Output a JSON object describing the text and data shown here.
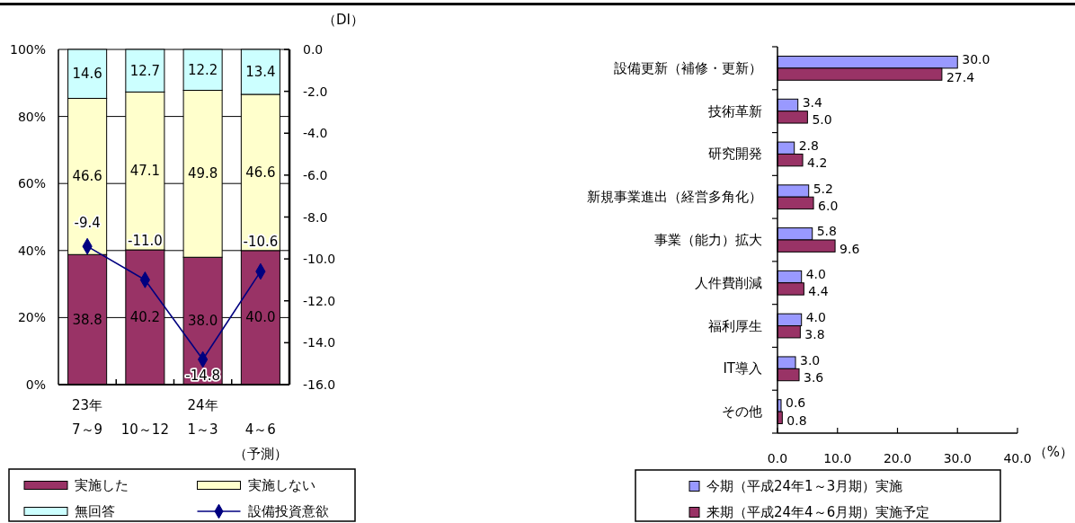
{
  "chart_data": [
    {
      "type": "bar",
      "stacked": true,
      "categories": [
        "23年\n7～9",
        "\n10～12",
        "24年\n1～3",
        "\n4～6\n（予測）"
      ],
      "series": [
        {
          "name": "実施した",
          "color": "#993366",
          "values": [
            38.8,
            40.2,
            38.0,
            40.0
          ],
          "value_labels": [
            "38.8",
            "40.2",
            "38.0",
            "40.0"
          ]
        },
        {
          "name": "実施しない",
          "color": "#ffffcc",
          "values": [
            46.6,
            47.1,
            49.8,
            46.6
          ],
          "value_labels": [
            "46.6",
            "47.1",
            "49.8",
            "46.6"
          ]
        },
        {
          "name": "無回答",
          "color": "#ccffff",
          "values": [
            14.6,
            12.7,
            12.2,
            13.4
          ],
          "value_labels": [
            "14.6",
            "12.7",
            "12.2",
            "13.4"
          ]
        },
        {
          "name": "設備投資意欲",
          "type": "line",
          "axis": "y2",
          "color": "#000080",
          "marker": "diamond",
          "values": [
            -9.4,
            -11.0,
            -14.8,
            -10.6
          ],
          "value_labels": [
            "-9.4",
            "-11.0",
            "-14.8",
            "-10.6"
          ]
        }
      ],
      "ylim": [
        0,
        100
      ],
      "yticks": [
        {
          "value": 0,
          "label": "0%"
        },
        {
          "value": 20,
          "label": "20%"
        },
        {
          "value": 40,
          "label": "40%"
        },
        {
          "value": 60,
          "label": "60%"
        },
        {
          "value": 80,
          "label": "80%"
        },
        {
          "value": 100,
          "label": "100%"
        }
      ],
      "y2lim": [
        -16,
        0
      ],
      "y2ticks": [
        {
          "value": -16,
          "label": "-16.0"
        },
        {
          "value": -14,
          "label": "-14.0"
        },
        {
          "value": -12,
          "label": "-12.0"
        },
        {
          "value": -10,
          "label": "-10.0"
        },
        {
          "value": -8,
          "label": "-8.0"
        },
        {
          "value": -6,
          "label": "-6.0"
        },
        {
          "value": -4,
          "label": "-4.0"
        },
        {
          "value": -2,
          "label": "-2.0"
        },
        {
          "value": 0,
          "label": "0.0"
        }
      ],
      "y2label": "（DI）",
      "grid": "y",
      "legend": "bottom"
    },
    {
      "type": "bar",
      "orientation": "horizontal",
      "categories": [
        "設備更新（補修・更新）",
        "技術革新",
        "研究開発",
        "新規事業進出（経営多角化）",
        "事業（能力）拡大",
        "人件費削減",
        "福利厚生",
        "IT導入",
        "その他"
      ],
      "series": [
        {
          "name": "今期（平成24年1～3月期）実施",
          "color": "#9999ff",
          "values": [
            30.0,
            3.4,
            2.8,
            5.2,
            5.8,
            4.0,
            4.0,
            3.0,
            0.6
          ],
          "value_labels": [
            "30.0",
            "3.4",
            "2.8",
            "5.2",
            "5.8",
            "4.0",
            "4.0",
            "3.0",
            "0.6"
          ]
        },
        {
          "name": "来期（平成24年4～6月期）実施予定",
          "color": "#993366",
          "values": [
            27.4,
            5.0,
            4.2,
            6.0,
            9.6,
            4.4,
            3.8,
            3.6,
            0.8
          ],
          "value_labels": [
            "27.4",
            "5.0",
            "4.2",
            "6.0",
            "9.6",
            "4.4",
            "3.8",
            "3.6",
            "0.8"
          ]
        }
      ],
      "xlim": [
        0,
        40
      ],
      "xticks": [
        {
          "value": 0,
          "label": "0.0"
        },
        {
          "value": 10,
          "label": "10.0"
        },
        {
          "value": 20,
          "label": "20.0"
        },
        {
          "value": 30,
          "label": "30.0"
        },
        {
          "value": 40,
          "label": "40.0"
        }
      ],
      "xlabel": "（%）",
      "legend": "bottom"
    }
  ]
}
